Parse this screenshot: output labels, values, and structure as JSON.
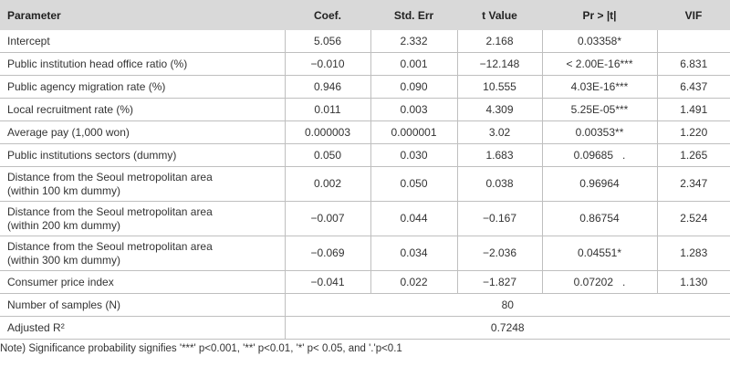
{
  "table": {
    "headers": [
      "Parameter",
      "Coef.",
      "Std. Err",
      "t Value",
      "Pr > |t|",
      "VIF"
    ],
    "rows": [
      {
        "param": "Intercept",
        "coef": "5.056",
        "stderr": "2.332",
        "tval": "2.168",
        "pr": "0.03358*",
        "vif": ""
      },
      {
        "param": "Public institution head office ratio (%)",
        "coef": "−0.010",
        "stderr": "0.001",
        "tval": "−12.148",
        "pr": "< 2.00E-16***",
        "vif": "6.831"
      },
      {
        "param": "Public agency migration rate (%)",
        "coef": "0.946",
        "stderr": "0.090",
        "tval": "10.555",
        "pr": "4.03E-16***",
        "vif": "6.437"
      },
      {
        "param": "Local recruitment rate (%)",
        "coef": "0.011",
        "stderr": "0.003",
        "tval": "4.309",
        "pr": "5.25E-05***",
        "vif": "1.491"
      },
      {
        "param": "Average pay (1,000 won)",
        "coef": "0.000003",
        "stderr": "0.000001",
        "tval": "3.02",
        "pr": "0.00353**",
        "vif": "1.220"
      },
      {
        "param": "Public institutions sectors (dummy)",
        "coef": "0.050",
        "stderr": "0.030",
        "tval": "1.683",
        "pr": "0.09685   .",
        "vif": "1.265"
      },
      {
        "param": "Distance from the Seoul metropolitan area",
        "param2": "(within 100 km dummy)",
        "coef": "0.002",
        "stderr": "0.050",
        "tval": "0.038",
        "pr": "0.96964",
        "vif": "2.347"
      },
      {
        "param": "Distance from the Seoul metropolitan area",
        "param2": "(within 200 km dummy)",
        "coef": "−0.007",
        "stderr": "0.044",
        "tval": "−0.167",
        "pr": "0.86754",
        "vif": "2.524"
      },
      {
        "param": "Distance from the Seoul metropolitan area",
        "param2": "(within 300 km dummy)",
        "coef": "−0.069",
        "stderr": "0.034",
        "tval": "−2.036",
        "pr": "0.04551*",
        "vif": "1.283"
      },
      {
        "param": "Consumer price index",
        "coef": "−0.041",
        "stderr": "0.022",
        "tval": "−1.827",
        "pr": "0.07202   .",
        "vif": "1.130"
      }
    ],
    "summary": [
      {
        "label": "Number of samples (N)",
        "value": "80"
      },
      {
        "label": "Adjusted R²",
        "value": "0.7248"
      }
    ]
  },
  "note": "Note) Significance probability signifies '***' p<0.001, '**' p<0.01, '*' p< 0.05, and '.'p<0.1"
}
